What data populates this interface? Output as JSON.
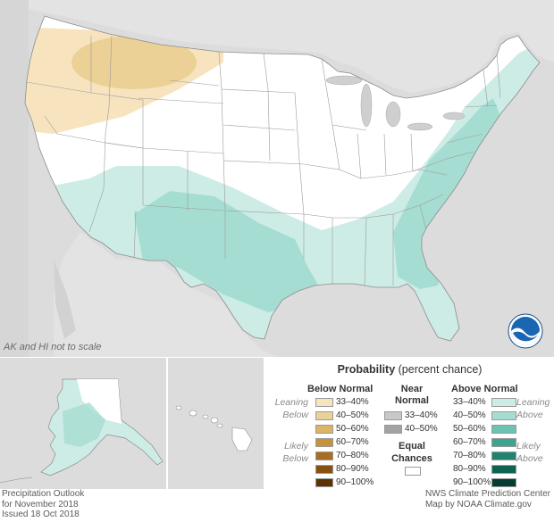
{
  "map": {
    "scale_note": "AK and HI not to scale",
    "logo_label": "NOAA"
  },
  "legend": {
    "title_bold": "Probability",
    "title_rest": " (percent chance)",
    "below": {
      "header": "Below Normal",
      "leaning_label": "Leaning Below",
      "likely_label": "Likely Below",
      "items": [
        {
          "label": "33–40%",
          "color": "#f7e4bf"
        },
        {
          "label": "40–50%",
          "color": "#ecd196"
        },
        {
          "label": "50–60%",
          "color": "#dcb466"
        },
        {
          "label": "60–70%",
          "color": "#c8923a"
        },
        {
          "label": "70–80%",
          "color": "#a86d1f"
        },
        {
          "label": "80–90%",
          "color": "#86500f"
        },
        {
          "label": "90–100%",
          "color": "#5c3205"
        }
      ]
    },
    "near": {
      "header_line1": "Near",
      "header_line2": "Normal",
      "items": [
        {
          "label": "33–40%",
          "color": "#c8c8c8"
        },
        {
          "label": "40–50%",
          "color": "#a3a3a3"
        }
      ]
    },
    "equal": {
      "line1": "Equal",
      "line2": "Chances",
      "color": "#ffffff"
    },
    "above": {
      "header": "Above Normal",
      "leaning_label": "Leaning Above",
      "likely_label": "Likely Above",
      "items": [
        {
          "label": "33–40%",
          "color": "#cdece6"
        },
        {
          "label": "40–50%",
          "color": "#a6ddd2"
        },
        {
          "label": "50–60%",
          "color": "#6cc3b1"
        },
        {
          "label": "60–70%",
          "color": "#3da58f"
        },
        {
          "label": "70–80%",
          "color": "#1e8470"
        },
        {
          "label": "80–90%",
          "color": "#0e6453"
        },
        {
          "label": "90–100%",
          "color": "#053d32"
        }
      ]
    }
  },
  "footer": {
    "left_line1": "Precipitation Outlook",
    "left_line2": "for November 2018",
    "left_line3": "Issued 18 Oct 2018",
    "right_line1": "NWS Climate Prediction Center",
    "right_line2": "Map by NOAA Climate.gov"
  }
}
